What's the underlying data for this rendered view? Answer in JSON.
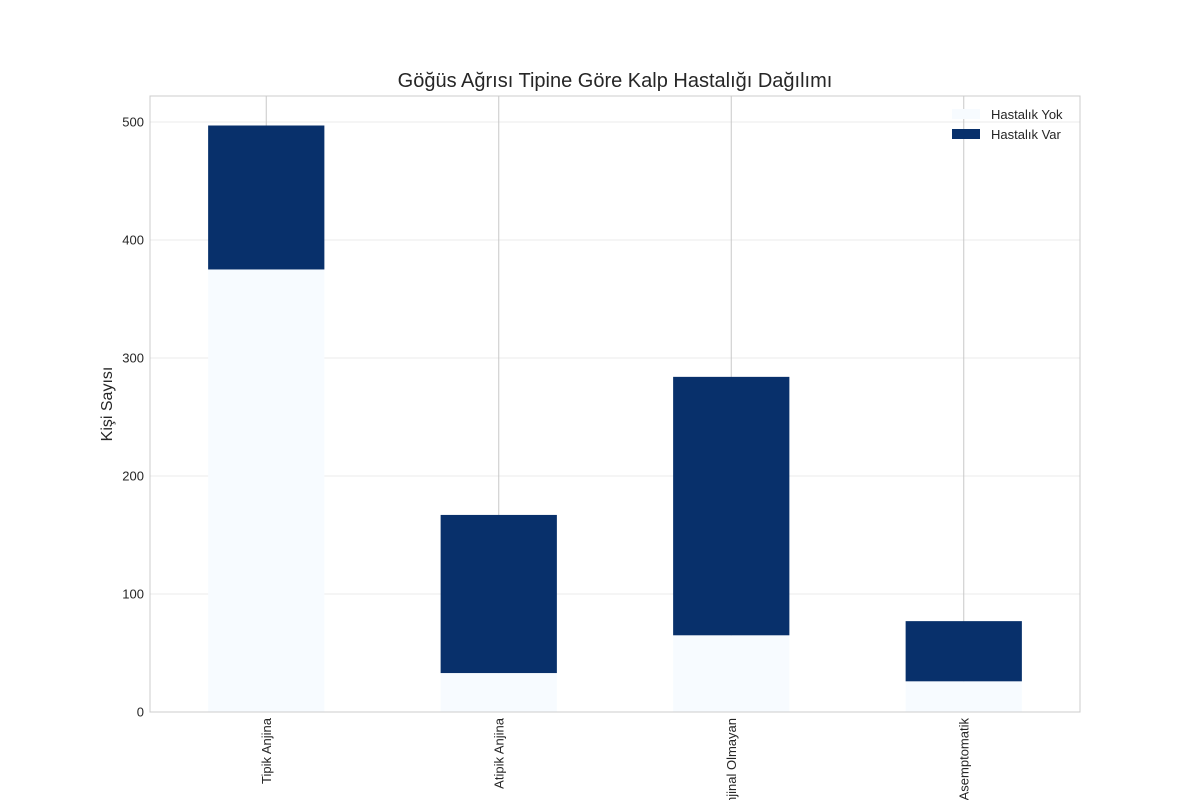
{
  "chart_data": {
    "type": "bar",
    "stacked": true,
    "title": "Göğüs Ağrısı Tipine Göre Kalp Hastalığı Dağılımı",
    "xlabel": "",
    "ylabel": "Kişi Sayısı",
    "categories": [
      "Tipik Anjina",
      "Atipik Anjina",
      "Anjinal Olmayan",
      "Asemptomatik"
    ],
    "series": [
      {
        "name": "Hastalık Yok",
        "values": [
          375,
          33,
          65,
          26
        ],
        "color": "#f7fbff"
      },
      {
        "name": "Hastalık Var",
        "values": [
          122,
          134,
          219,
          51
        ],
        "color": "#08306b"
      }
    ],
    "ylim": [
      0,
      522
    ],
    "yticks": [
      0,
      100,
      200,
      300,
      400,
      500
    ],
    "grid": true,
    "legend_position": "top-right"
  }
}
